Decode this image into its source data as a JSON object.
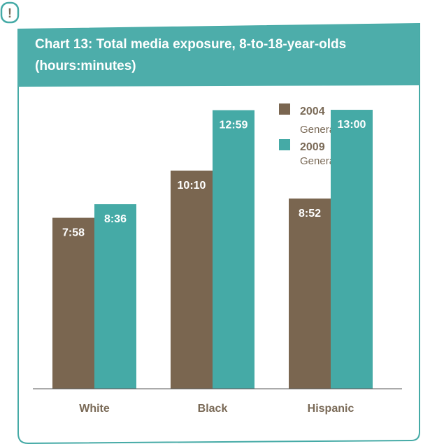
{
  "alert_symbol": "!",
  "chart_data": {
    "type": "bar",
    "title": "Chart 13: Total media exposure, 8-to-18-year-olds",
    "subtitle": "(hours:minutes)",
    "categories": [
      "White",
      "Black",
      "Hispanic"
    ],
    "series": [
      {
        "name": "2004",
        "subtitle": "Generation M",
        "color": "#7a6650",
        "values": [
          7.9667,
          10.1667,
          8.8667
        ],
        "labels": [
          "7:58",
          "10:10",
          "8:52"
        ]
      },
      {
        "name": "2009",
        "subtitle": "Generation M²",
        "color": "#45aaa6",
        "values": [
          8.6,
          12.9833,
          13.0
        ],
        "labels": [
          "8:36",
          "12:59",
          "13:00"
        ]
      }
    ],
    "ylim": [
      0,
      14.5
    ],
    "grid": false,
    "legend_position": "top-right"
  }
}
